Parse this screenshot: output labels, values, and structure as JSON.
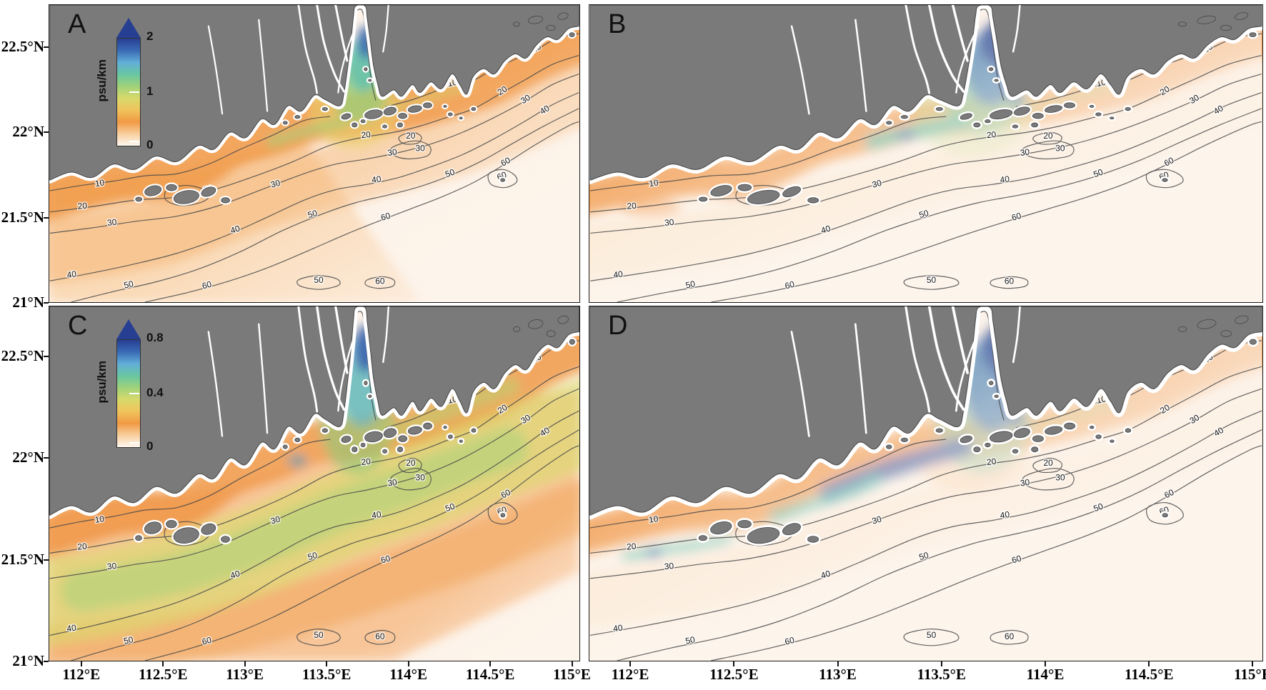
{
  "figure": {
    "background": "#ffffff"
  },
  "axes": {
    "lat_ticks": [
      "22.5°N",
      "22°N",
      "21.5°N",
      "21°N"
    ],
    "lon_ticks": [
      "112°E",
      "112.5°E",
      "113°E",
      "113.5°E",
      "114°E",
      "114.5°E",
      "115°E"
    ]
  },
  "panels": [
    {
      "label": "A",
      "colorbar": {
        "unit": "psu/km",
        "ticks": [
          "0",
          "1",
          "2"
        ]
      }
    },
    {
      "label": "B"
    },
    {
      "label": "C",
      "colorbar": {
        "unit": "psu/km",
        "ticks": [
          "0",
          "0.4",
          "0.8"
        ]
      }
    },
    {
      "label": "D"
    }
  ],
  "contour_levels": [
    "10",
    "20",
    "30",
    "40",
    "50",
    "60"
  ],
  "colors": {
    "land": "#7a7a7a",
    "land_outline": "#454545",
    "coast_halo": "#ffffff",
    "contour_line": "#4a4a4a",
    "ocean_base": "#fdf3e9",
    "colormap_low_to_high": [
      "#fef7f0",
      "#f8cf9d",
      "#f19a45",
      "#efc35c",
      "#d8d96b",
      "#9fd27a",
      "#68c6a2",
      "#62aed8",
      "#3a6ab5",
      "#273f93"
    ]
  },
  "chart_data": {
    "type": "heatmap",
    "title": "",
    "panels": [
      {
        "label": "A",
        "quantity_units": "psu/km",
        "colorbar_min": 0,
        "colorbar_max": 2,
        "colorbar_ticks": [
          0,
          1,
          2
        ]
      },
      {
        "label": "B",
        "quantity_units": "psu/km",
        "colorbar_min": 0,
        "colorbar_max": 2
      },
      {
        "label": "C",
        "quantity_units": "psu/km",
        "colorbar_min": 0,
        "colorbar_max": 0.8,
        "colorbar_ticks": [
          0,
          0.4,
          0.8
        ]
      },
      {
        "label": "D",
        "quantity_units": "psu/km",
        "colorbar_min": 0,
        "colorbar_max": 0.8
      }
    ],
    "x_ticks": [
      "112°E",
      "112.5°E",
      "113°E",
      "113.5°E",
      "114°E",
      "114.5°E",
      "115°E"
    ],
    "y_ticks": [
      "21°N",
      "21.5°N",
      "22°N",
      "22.5°N"
    ],
    "depth_contour_labels": [
      10,
      20,
      30,
      40,
      50,
      60
    ],
    "layout": "2x2 panel grid of coastal maps; panels A and C carry vertical colorbars with arrow caps; gray land, white coastal halo, labeled gray isobaths over an orange-to-blue gradient field"
  }
}
